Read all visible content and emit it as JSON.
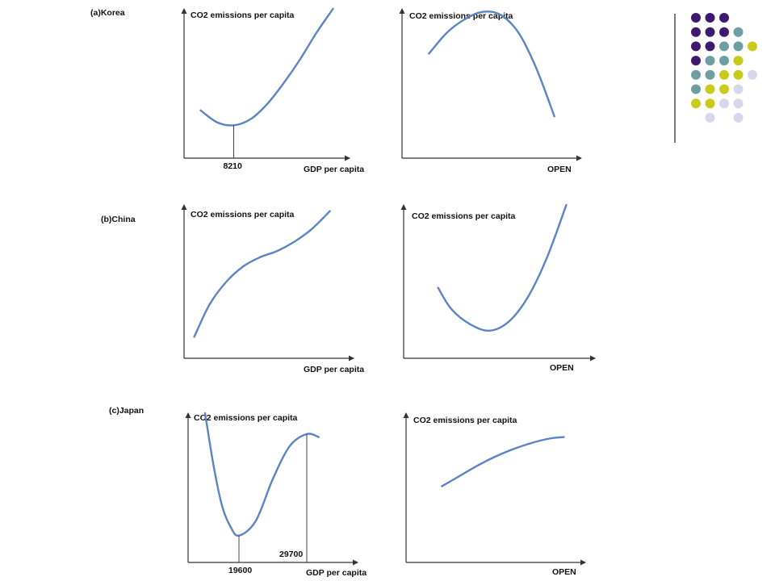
{
  "chart_data": [
    {
      "type": "line",
      "panel": "(a)Korea",
      "ylabel": "CO2 emissions per capita",
      "xlabel": "GDP per capita",
      "x": [
        0.1,
        0.2,
        0.3,
        0.4,
        0.5,
        0.6,
        0.7,
        0.8,
        0.9
      ],
      "y": [
        0.32,
        0.24,
        0.22,
        0.26,
        0.36,
        0.5,
        0.66,
        0.84,
        1.0
      ],
      "markers": [
        {
          "x": 0.3,
          "label": "8210"
        }
      ]
    },
    {
      "type": "line",
      "panel": "",
      "ylabel": "CO2 emissions per capita",
      "xlabel": "OPEN",
      "x": [
        0.15,
        0.25,
        0.35,
        0.45,
        0.55,
        0.65,
        0.75,
        0.85
      ],
      "y": [
        0.7,
        0.84,
        0.93,
        0.98,
        0.96,
        0.84,
        0.6,
        0.28
      ]
    },
    {
      "type": "line",
      "panel": "(b)China",
      "ylabel": "CO2 emissions per capita",
      "xlabel": "GDP per capita",
      "x": [
        0.06,
        0.15,
        0.25,
        0.35,
        0.45,
        0.55,
        0.65,
        0.75,
        0.86
      ],
      "y": [
        0.14,
        0.35,
        0.5,
        0.6,
        0.66,
        0.7,
        0.76,
        0.84,
        0.96
      ]
    },
    {
      "type": "line",
      "panel": "",
      "ylabel": "CO2 emissions per capita",
      "xlabel": "OPEN",
      "x": [
        0.18,
        0.25,
        0.35,
        0.45,
        0.55,
        0.65,
        0.75,
        0.85
      ],
      "y": [
        0.46,
        0.32,
        0.22,
        0.18,
        0.24,
        0.4,
        0.66,
        1.0
      ]
    },
    {
      "type": "line",
      "panel": "(c)Japan",
      "ylabel": "CO2 emissions per capita",
      "xlabel": "GDP per capita",
      "x": [
        0.1,
        0.15,
        0.2,
        0.25,
        0.3,
        0.4,
        0.5,
        0.6,
        0.7,
        0.77
      ],
      "y": [
        1.0,
        0.65,
        0.38,
        0.24,
        0.18,
        0.28,
        0.56,
        0.78,
        0.86,
        0.84
      ],
      "markers": [
        {
          "x": 0.3,
          "label": "19600"
        },
        {
          "x": 0.7,
          "label": "29700"
        }
      ]
    },
    {
      "type": "line",
      "panel": "",
      "ylabel": "CO2 emissions per capita",
      "xlabel": "OPEN",
      "x": [
        0.2,
        0.3,
        0.4,
        0.5,
        0.6,
        0.7,
        0.8,
        0.88
      ],
      "y": [
        0.51,
        0.58,
        0.65,
        0.71,
        0.76,
        0.8,
        0.83,
        0.84
      ]
    }
  ],
  "decoration": {
    "colors": {
      "purple": "#3d1a6e",
      "teal": "#6b9fa0",
      "yellow": "#c9cb1a",
      "lavender": "#d6d6ec"
    },
    "dots": [
      [
        "purple",
        "purple",
        "purple",
        null,
        null
      ],
      [
        "purple",
        "purple",
        "purple",
        "teal",
        null
      ],
      [
        "purple",
        "purple",
        "teal",
        "teal",
        "yellow"
      ],
      [
        "purple",
        "teal",
        "teal",
        "yellow",
        null
      ],
      [
        "teal",
        "teal",
        "yellow",
        "yellow",
        "lavender"
      ],
      [
        "teal",
        "yellow",
        "yellow",
        "lavender",
        null
      ],
      [
        "yellow",
        "yellow",
        "lavender",
        "lavender",
        null
      ],
      [
        null,
        "lavender",
        null,
        "lavender",
        null
      ]
    ]
  }
}
